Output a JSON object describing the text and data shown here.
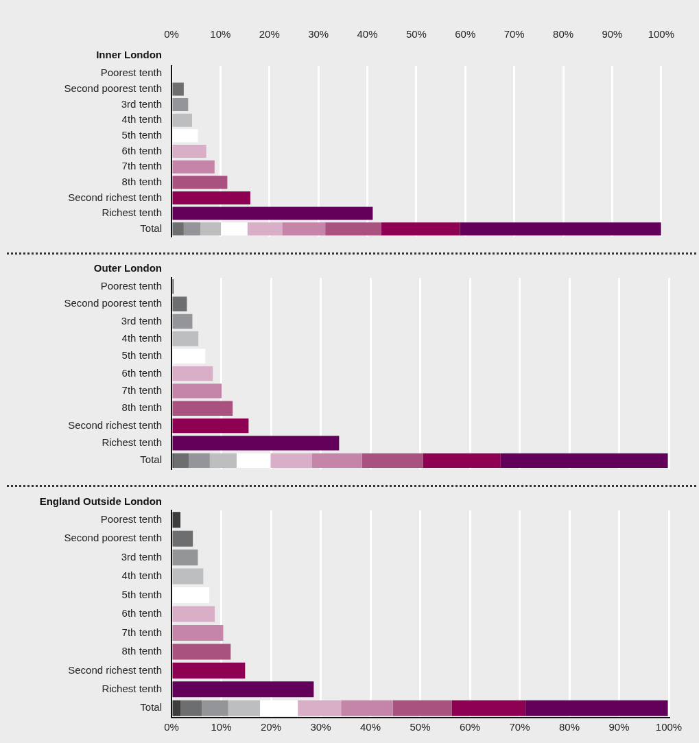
{
  "chart_data": [
    {
      "type": "bar",
      "orientation": "horizontal",
      "stacked": true,
      "title": "Inner London",
      "categories": [
        "Poorest tenth",
        "Second poorest tenth",
        "3rd tenth",
        "4th tenth",
        "5th tenth",
        "6th tenth",
        "7th tenth",
        "8th tenth",
        "Second richest tenth",
        "Richest tenth",
        "Total"
      ],
      "series": [
        {
          "color": "#3d3d3d",
          "values": [
            0,
            null,
            null,
            null,
            null,
            null,
            null,
            null,
            null,
            null,
            0
          ]
        },
        {
          "color": "#6d6e70",
          "values": [
            null,
            2.5,
            null,
            null,
            null,
            null,
            null,
            null,
            null,
            null,
            2.5
          ]
        },
        {
          "color": "#939598",
          "values": [
            null,
            null,
            3.4,
            null,
            null,
            null,
            null,
            null,
            null,
            null,
            3.4
          ]
        },
        {
          "color": "#bcbec0",
          "values": [
            null,
            null,
            null,
            4.2,
            null,
            null,
            null,
            null,
            null,
            null,
            4.2
          ]
        },
        {
          "color": "#ffffff",
          "values": [
            null,
            null,
            null,
            null,
            5.4,
            null,
            null,
            null,
            null,
            null,
            5.4
          ]
        },
        {
          "color": "#d9aec7",
          "values": [
            null,
            null,
            null,
            null,
            null,
            7.1,
            null,
            null,
            null,
            null,
            7.1
          ]
        },
        {
          "color": "#c585a8",
          "values": [
            null,
            null,
            null,
            null,
            null,
            null,
            8.8,
            null,
            null,
            null,
            8.8
          ]
        },
        {
          "color": "#a9517f",
          "values": [
            null,
            null,
            null,
            null,
            null,
            null,
            null,
            11.4,
            null,
            null,
            11.4
          ]
        },
        {
          "color": "#8e0052",
          "values": [
            null,
            null,
            null,
            null,
            null,
            null,
            null,
            null,
            16.1,
            null,
            16.1
          ]
        },
        {
          "color": "#62005a",
          "values": [
            null,
            null,
            null,
            null,
            null,
            null,
            null,
            null,
            null,
            41.1,
            41.1
          ]
        }
      ],
      "xlim": [
        0,
        100
      ],
      "xticks": [
        {
          "value": 0,
          "label": "0%"
        },
        {
          "value": 10,
          "label": "10%"
        },
        {
          "value": 20,
          "label": "20%"
        },
        {
          "value": 30,
          "label": "30%"
        },
        {
          "value": 40,
          "label": "40%"
        },
        {
          "value": 50,
          "label": "50%"
        },
        {
          "value": 60,
          "label": "60%"
        },
        {
          "value": 70,
          "label": "70%"
        },
        {
          "value": 80,
          "label": "80%"
        },
        {
          "value": 90,
          "label": "90%"
        },
        {
          "value": 100,
          "label": "100%"
        }
      ],
      "grid": "x",
      "legend": false
    },
    {
      "type": "bar",
      "orientation": "horizontal",
      "stacked": true,
      "title": "Outer London",
      "categories": [
        "Poorest tenth",
        "Second poorest tenth",
        "3rd tenth",
        "4th tenth",
        "5th tenth",
        "6th tenth",
        "7th tenth",
        "8th tenth",
        "Second richest tenth",
        "Richest tenth",
        "Total"
      ],
      "series": [
        {
          "color": "#3d3d3d",
          "values": [
            0.4,
            null,
            null,
            null,
            null,
            null,
            null,
            null,
            null,
            null,
            0.4
          ]
        },
        {
          "color": "#6d6e70",
          "values": [
            null,
            3.1,
            null,
            null,
            null,
            null,
            null,
            null,
            null,
            null,
            3.1
          ]
        },
        {
          "color": "#939598",
          "values": [
            null,
            null,
            4.2,
            null,
            null,
            null,
            null,
            null,
            null,
            null,
            4.2
          ]
        },
        {
          "color": "#bcbec0",
          "values": [
            null,
            null,
            null,
            5.4,
            null,
            null,
            null,
            null,
            null,
            null,
            5.4
          ]
        },
        {
          "color": "#ffffff",
          "values": [
            null,
            null,
            null,
            null,
            6.8,
            null,
            null,
            null,
            null,
            null,
            6.8
          ]
        },
        {
          "color": "#d9aec7",
          "values": [
            null,
            null,
            null,
            null,
            null,
            8.3,
            null,
            null,
            null,
            null,
            8.3
          ]
        },
        {
          "color": "#c585a8",
          "values": [
            null,
            null,
            null,
            null,
            null,
            null,
            10.1,
            null,
            null,
            null,
            10.1
          ]
        },
        {
          "color": "#a9517f",
          "values": [
            null,
            null,
            null,
            null,
            null,
            null,
            null,
            12.3,
            null,
            null,
            12.3
          ]
        },
        {
          "color": "#8e0052",
          "values": [
            null,
            null,
            null,
            null,
            null,
            null,
            null,
            null,
            15.5,
            null,
            15.5
          ]
        },
        {
          "color": "#62005a",
          "values": [
            null,
            null,
            null,
            null,
            null,
            null,
            null,
            null,
            null,
            33.7,
            33.7
          ]
        }
      ],
      "xlim": [
        0,
        100
      ],
      "xticks": [
        0,
        10,
        20,
        30,
        40,
        50,
        60,
        70,
        80,
        90,
        100
      ],
      "grid": "x",
      "legend": false,
      "tick_labels": "y"
    },
    {
      "type": "bar",
      "orientation": "horizontal",
      "stacked": true,
      "title": "England Outside London",
      "categories": [
        "Poorest tenth",
        "Second poorest tenth",
        "3rd tenth",
        "4th tenth",
        "5th tenth",
        "6th tenth",
        "7th tenth",
        "8th tenth",
        "Second richest tenth",
        "Richest tenth",
        "Total"
      ],
      "series": [
        {
          "color": "#3d3d3d",
          "values": [
            1.8,
            null,
            null,
            null,
            null,
            null,
            null,
            null,
            null,
            null,
            1.8
          ]
        },
        {
          "color": "#6d6e70",
          "values": [
            null,
            4.3,
            null,
            null,
            null,
            null,
            null,
            null,
            null,
            null,
            4.3
          ]
        },
        {
          "color": "#939598",
          "values": [
            null,
            null,
            5.3,
            null,
            null,
            null,
            null,
            null,
            null,
            null,
            5.3
          ]
        },
        {
          "color": "#bcbec0",
          "values": [
            null,
            null,
            null,
            6.4,
            null,
            null,
            null,
            null,
            null,
            null,
            6.4
          ]
        },
        {
          "color": "#ffffff",
          "values": [
            null,
            null,
            null,
            null,
            7.6,
            null,
            null,
            null,
            null,
            null,
            7.6
          ]
        },
        {
          "color": "#d9aec7",
          "values": [
            null,
            null,
            null,
            null,
            null,
            8.7,
            null,
            null,
            null,
            null,
            8.7
          ]
        },
        {
          "color": "#c585a8",
          "values": [
            null,
            null,
            null,
            null,
            null,
            null,
            10.4,
            null,
            null,
            null,
            10.4
          ]
        },
        {
          "color": "#a9517f",
          "values": [
            null,
            null,
            null,
            null,
            null,
            null,
            null,
            11.9,
            null,
            null,
            11.9
          ]
        },
        {
          "color": "#8e0052",
          "values": [
            null,
            null,
            null,
            null,
            null,
            null,
            null,
            null,
            14.8,
            null,
            14.8
          ]
        },
        {
          "color": "#62005a",
          "values": [
            null,
            null,
            null,
            null,
            null,
            null,
            null,
            null,
            null,
            28.6,
            28.6
          ]
        }
      ],
      "xlim": [
        0,
        100
      ],
      "xticks": [
        {
          "value": 0,
          "label": "0%"
        },
        {
          "value": 10,
          "label": "10%"
        },
        {
          "value": 20,
          "label": "20%"
        },
        {
          "value": 30,
          "label": "30%"
        },
        {
          "value": 40,
          "label": "40%"
        },
        {
          "value": 50,
          "label": "50%"
        },
        {
          "value": 60,
          "label": "60%"
        },
        {
          "value": 70,
          "label": "70%"
        },
        {
          "value": 80,
          "label": "80%"
        },
        {
          "value": 90,
          "label": "90%"
        },
        {
          "value": 100,
          "label": "100%"
        }
      ],
      "grid": "x",
      "legend": false
    }
  ]
}
